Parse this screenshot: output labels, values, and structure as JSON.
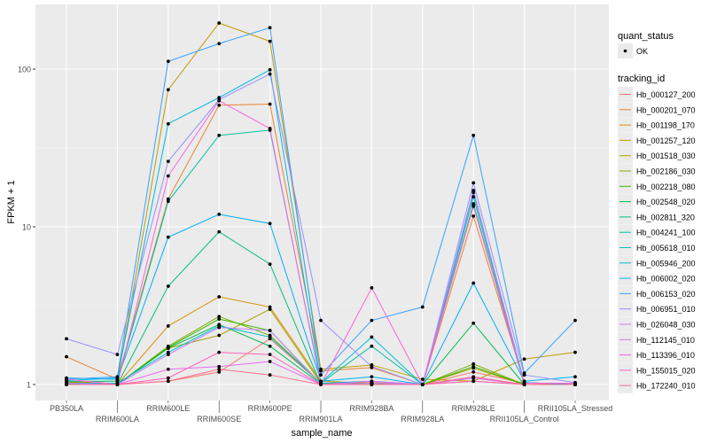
{
  "chart_data": {
    "type": "line",
    "xlabel": "sample_name",
    "ylabel": "FPKM + 1",
    "y_scale": "log10",
    "ylim": [
      0.86,
      260
    ],
    "y_ticks": [
      1,
      10,
      100
    ],
    "y_tick_labels": [
      "1",
      "10",
      "100"
    ],
    "grid": true,
    "legend_position": "right",
    "categories": [
      "PB350LA",
      "RRIM600LA",
      "RRIM600LE",
      "RRIM600SE",
      "RRIM600PE",
      "RRIM901LA",
      "RRIM928BA",
      "RRIM928LA",
      "RRIM928LE",
      "RRII105LA_Control",
      "RRII105LA_Stressed"
    ],
    "point_legend": {
      "title": "quant_status",
      "entries": [
        "OK"
      ],
      "color": "#000000"
    },
    "line_legend_title": "tracking_id",
    "series": [
      {
        "name": "Hb_000127_200",
        "color": "#F8766D",
        "values": [
          1.02,
          1.0,
          1.05,
          1.2,
          1.95,
          1.02,
          1.03,
          1.0,
          1.2,
          1.02,
          1.0
        ]
      },
      {
        "name": "Hb_000201_070",
        "color": "#EA8331",
        "values": [
          1.5,
          1.08,
          15,
          59,
          60,
          1.22,
          1.28,
          1.0,
          11.7,
          1.03,
          1.0
        ]
      },
      {
        "name": "Hb_001198_170",
        "color": "#D89000",
        "values": [
          1.05,
          1.0,
          2.35,
          3.6,
          3.1,
          1.05,
          1.02,
          1.0,
          1.05,
          1.0,
          1.0
        ]
      },
      {
        "name": "Hb_001257_120",
        "color": "#C09B00",
        "values": [
          1.03,
          1.05,
          74,
          196,
          150,
          1.25,
          1.33,
          1.08,
          1.05,
          1.45,
          1.6
        ]
      },
      {
        "name": "Hb_001518_030",
        "color": "#A3A500",
        "values": [
          1.04,
          1.0,
          1.7,
          2.05,
          3.0,
          1.02,
          1.02,
          1.0,
          1.27,
          1.0,
          1.0
        ]
      },
      {
        "name": "Hb_002186_030",
        "color": "#7CAE00",
        "values": [
          1.03,
          1.0,
          1.75,
          2.7,
          2.05,
          1.02,
          1.02,
          1.0,
          1.35,
          1.0,
          1.0
        ]
      },
      {
        "name": "Hb_002218_080",
        "color": "#39B600",
        "values": [
          1.02,
          1.0,
          1.72,
          2.6,
          2.2,
          1.01,
          1.02,
          1.0,
          1.3,
          1.0,
          1.0
        ]
      },
      {
        "name": "Hb_002548_020",
        "color": "#00BB4E",
        "values": [
          1.01,
          1.0,
          1.7,
          2.4,
          1.75,
          1.01,
          1.0,
          1.0,
          2.45,
          1.0,
          1.0
        ]
      },
      {
        "name": "Hb_002811_320",
        "color": "#00BF7D",
        "values": [
          1.0,
          1.0,
          4.2,
          9.3,
          5.8,
          1.0,
          1.0,
          1.0,
          14,
          1.0,
          1.0
        ]
      },
      {
        "name": "Hb_004241_100",
        "color": "#00C1A3",
        "values": [
          1.05,
          1.05,
          14.5,
          38,
          41,
          1.02,
          1.75,
          1.0,
          15.5,
          1.0,
          1.0
        ]
      },
      {
        "name": "Hb_005618_010",
        "color": "#00BFC4",
        "values": [
          1.02,
          1.02,
          1.6,
          2.35,
          2.0,
          1.02,
          1.05,
          1.0,
          1.1,
          1.0,
          1.0
        ]
      },
      {
        "name": "Hb_005946_200",
        "color": "#00BAE0",
        "values": [
          1.06,
          1.1,
          45,
          66,
          99,
          1.03,
          2.0,
          1.0,
          16.5,
          1.03,
          1.0
        ]
      },
      {
        "name": "Hb_006002_020",
        "color": "#00B0F6",
        "values": [
          1.1,
          1.08,
          8.6,
          12,
          10.5,
          1.05,
          1.12,
          1.0,
          4.4,
          1.05,
          1.12
        ]
      },
      {
        "name": "Hb_006153_020",
        "color": "#35A2FF",
        "values": [
          1.08,
          1.12,
          112,
          145,
          183,
          1.15,
          2.55,
          3.1,
          38,
          1.18,
          2.55
        ]
      },
      {
        "name": "Hb_006951_010",
        "color": "#9590FF",
        "values": [
          1.95,
          1.55,
          26,
          64,
          93,
          2.55,
          1.3,
          1.0,
          19,
          1.15,
          1.03
        ]
      },
      {
        "name": "Hb_026048_030",
        "color": "#C77CFF",
        "values": [
          1.02,
          1.0,
          1.55,
          2.3,
          2.2,
          1.0,
          1.02,
          1.0,
          17,
          1.0,
          1.0
        ]
      },
      {
        "name": "Hb_112145_010",
        "color": "#E76BF3",
        "values": [
          1.0,
          1.0,
          1.25,
          1.3,
          1.4,
          1.0,
          1.05,
          1.0,
          1.1,
          1.0,
          1.0
        ]
      },
      {
        "name": "Hb_113396_010",
        "color": "#FA62DB",
        "values": [
          1.08,
          1.0,
          21,
          63,
          42,
          1.0,
          4.1,
          1.0,
          13.5,
          1.02,
          1.02
        ]
      },
      {
        "name": "Hb_155015_020",
        "color": "#FF62BC",
        "values": [
          1.0,
          1.0,
          1.1,
          1.6,
          1.55,
          1.0,
          1.0,
          1.0,
          1.05,
          1.0,
          1.0
        ]
      },
      {
        "name": "Hb_172240_010",
        "color": "#FF6C91",
        "values": [
          1.0,
          1.0,
          1.05,
          1.25,
          1.15,
          1.0,
          1.0,
          1.0,
          1.12,
          1.0,
          1.0
        ]
      }
    ]
  }
}
